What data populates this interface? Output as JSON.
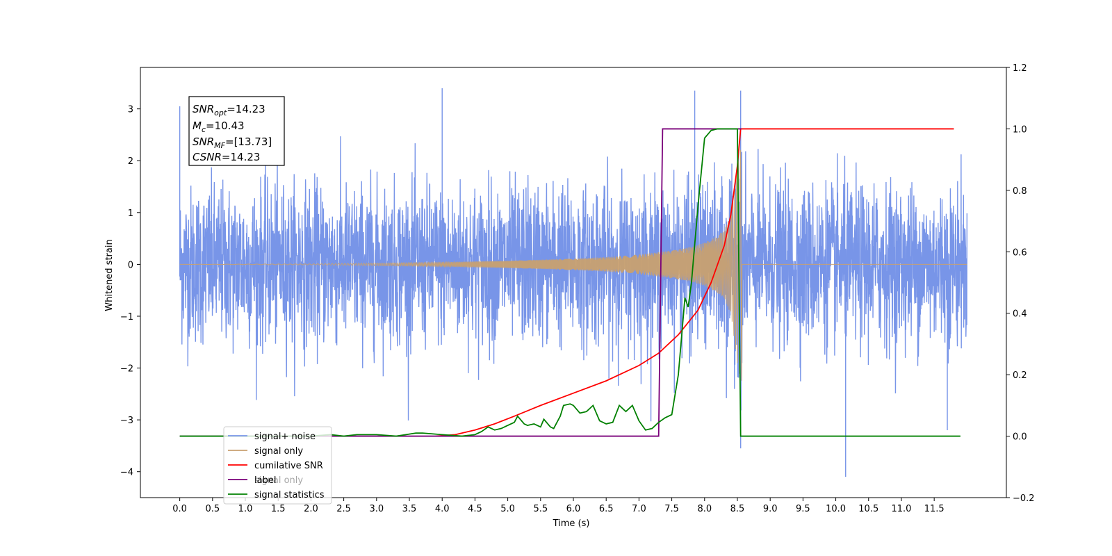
{
  "chart_data": {
    "type": "line",
    "xlabel": "Time (s)",
    "ylabel": "Whitened strain",
    "xlim": [
      -0.6,
      12.6
    ],
    "ylim": [
      -4.5,
      3.8
    ],
    "ylim_right": [
      -0.2,
      1.2
    ],
    "x_ticks": [
      0.0,
      0.5,
      1.0,
      1.5,
      2.0,
      2.5,
      3.0,
      3.5,
      4.0,
      4.5,
      5.0,
      5.5,
      6.0,
      6.5,
      7.0,
      7.5,
      8.0,
      8.5,
      9.0,
      9.5,
      10.0,
      10.5,
      11.0,
      11.5
    ],
    "x_tick_labels": [
      "0.0",
      "0.5",
      "1.0",
      "1.5",
      "2.0",
      "2.5",
      "3.0",
      "3.5",
      "4.0",
      "4.5",
      "5.0",
      "5.5",
      "6.0",
      "6.5",
      "7.0",
      "7.5",
      "8.0",
      "8.5",
      "9.0",
      "9.5",
      "10.0",
      "10.5",
      "11.0",
      "11.5"
    ],
    "y_ticks": [
      3,
      2,
      1,
      0,
      -1,
      -2,
      -3,
      -4
    ],
    "y_tick_labels": [
      "3",
      "2",
      "1",
      "0",
      "−1",
      "−2",
      "−3",
      "−4"
    ],
    "y_right_ticks": [
      1.2,
      1.0,
      0.8,
      0.6,
      0.4,
      0.2,
      0.0,
      -0.2
    ],
    "y_right_tick_labels": [
      "1.2",
      "1.0",
      "0.8",
      "0.6",
      "0.4",
      "0.2",
      "0.0",
      "−0.2"
    ],
    "grid": false,
    "legend_position": "bottom-left",
    "series": [
      {
        "name": "signal+ noise",
        "color": "#7895e8",
        "axis": "left",
        "description_values": {
          "x_range": [
            0.0,
            12.0
          ],
          "typical_amplitude": 1.0,
          "peaks": [
            [
              0.0,
              3.05
            ],
            [
              4.0,
              3.4
            ],
            [
              7.85,
              3.35
            ],
            [
              8.55,
              3.35
            ],
            [
              8.55,
              -3.55
            ],
            [
              10.15,
              -4.1
            ],
            [
              11.7,
              -3.2
            ]
          ]
        }
      },
      {
        "name": "signal only",
        "color": "#c8a070",
        "axis": "left",
        "envelope": {
          "x": [
            0.0,
            2.0,
            4.0,
            5.0,
            6.0,
            6.5,
            7.0,
            7.5,
            7.8,
            8.0,
            8.2,
            8.3,
            8.4,
            8.5,
            8.55
          ],
          "amplitude": [
            0.0,
            0.01,
            0.04,
            0.07,
            0.11,
            0.14,
            0.19,
            0.27,
            0.34,
            0.42,
            0.55,
            0.68,
            0.95,
            1.9,
            2.25
          ],
          "end_x": 8.57
        }
      },
      {
        "name": "cumilative SNR",
        "color": "#ff0000",
        "axis": "right",
        "x": [
          3.9,
          4.2,
          4.5,
          4.8,
          5.1,
          5.5,
          6.0,
          6.5,
          7.0,
          7.3,
          7.6,
          7.9,
          8.1,
          8.3,
          8.4,
          8.5,
          8.55,
          8.56,
          11.8
        ],
        "y": [
          0.0,
          0.005,
          0.02,
          0.04,
          0.065,
          0.1,
          0.14,
          0.18,
          0.23,
          0.27,
          0.33,
          0.41,
          0.5,
          0.62,
          0.72,
          0.88,
          1.0,
          1.0,
          1.0
        ]
      },
      {
        "name": "label",
        "color": "#7a007a",
        "axis": "right",
        "x": [
          0.0,
          7.3,
          7.36,
          8.55,
          8.56
        ],
        "y": [
          0.0,
          0.0,
          1.0,
          1.0,
          1.0
        ]
      },
      {
        "name": "signal statistics",
        "color": "#008000",
        "axis": "right",
        "x": [
          0.0,
          2.0,
          2.3,
          2.5,
          2.7,
          3.0,
          3.3,
          3.6,
          3.7,
          4.0,
          4.3,
          4.5,
          4.6,
          4.7,
          4.8,
          4.9,
          5.0,
          5.1,
          5.15,
          5.25,
          5.3,
          5.4,
          5.5,
          5.55,
          5.65,
          5.7,
          5.8,
          5.85,
          5.95,
          6.0,
          6.1,
          6.2,
          6.3,
          6.4,
          6.5,
          6.6,
          6.7,
          6.8,
          6.9,
          7.0,
          7.1,
          7.2,
          7.3,
          7.4,
          7.5,
          7.6,
          7.7,
          7.75,
          7.8,
          7.9,
          8.0,
          8.1,
          8.2,
          8.5,
          8.55,
          8.56,
          11.9
        ],
        "y": [
          0.0,
          0.0,
          0.005,
          0.0,
          0.005,
          0.005,
          0.0,
          0.01,
          0.01,
          0.005,
          0.0,
          0.005,
          0.015,
          0.03,
          0.02,
          0.025,
          0.035,
          0.045,
          0.065,
          0.04,
          0.035,
          0.04,
          0.03,
          0.055,
          0.03,
          0.025,
          0.065,
          0.1,
          0.105,
          0.1,
          0.075,
          0.08,
          0.1,
          0.05,
          0.04,
          0.045,
          0.1,
          0.08,
          0.1,
          0.05,
          0.02,
          0.025,
          0.045,
          0.06,
          0.07,
          0.2,
          0.45,
          0.42,
          0.5,
          0.75,
          0.97,
          0.995,
          1.0,
          1.0,
          0.0,
          0.0,
          0.0
        ]
      }
    ],
    "stats_box": {
      "snr_opt": "=14.23",
      "mc": "=10.43",
      "snr_mf": "=[13.73]",
      "csnr": "=14.23"
    },
    "legend_overlap_text": "signal only"
  }
}
